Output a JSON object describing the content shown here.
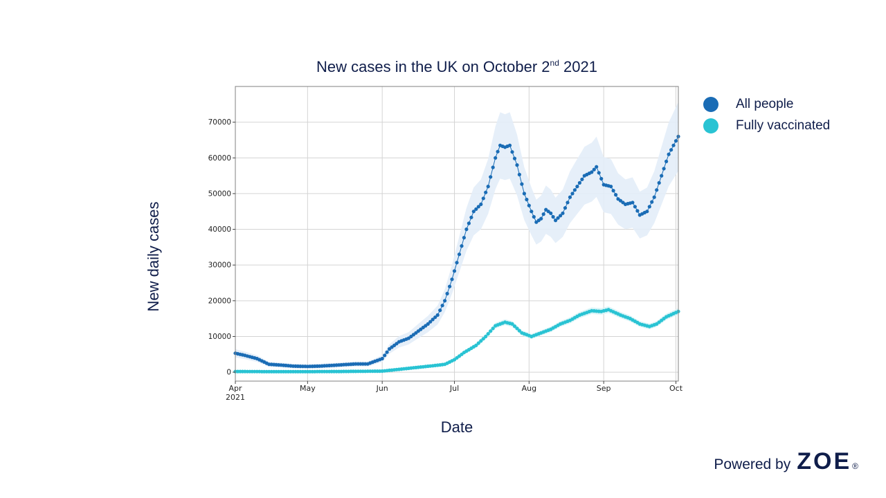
{
  "chart_data": {
    "type": "line",
    "title": "New cases in the UK on October 2",
    "title_superscript": "nd",
    "title_suffix": " 2021",
    "xlabel": "Date",
    "ylabel": "New daily cases",
    "x_ticks": [
      "Apr",
      "May",
      "Jun",
      "Jul",
      "Aug",
      "Sep",
      "Oct"
    ],
    "x_tick_year": "2021",
    "x_range": [
      "2021-04-01",
      "2021-10-02"
    ],
    "ylim": [
      -2500,
      80000
    ],
    "y_ticks": [
      0,
      10000,
      20000,
      30000,
      40000,
      50000,
      60000,
      70000
    ],
    "grid": true,
    "legend_position": "right",
    "series": [
      {
        "name": "All people",
        "color": "#1a6cb5",
        "band_color": "#e3edf8",
        "band_relative_width": 0.14,
        "points": [
          [
            "2021-04-01",
            5300
          ],
          [
            "2021-04-05",
            4700
          ],
          [
            "2021-04-10",
            3800
          ],
          [
            "2021-04-15",
            2200
          ],
          [
            "2021-04-20",
            2000
          ],
          [
            "2021-04-25",
            1700
          ],
          [
            "2021-05-01",
            1600
          ],
          [
            "2021-05-06",
            1700
          ],
          [
            "2021-05-11",
            1900
          ],
          [
            "2021-05-16",
            2100
          ],
          [
            "2021-05-21",
            2300
          ],
          [
            "2021-05-26",
            2300
          ],
          [
            "2021-06-01",
            3800
          ],
          [
            "2021-06-04",
            6500
          ],
          [
            "2021-06-08",
            8500
          ],
          [
            "2021-06-12",
            9500
          ],
          [
            "2021-06-16",
            11500
          ],
          [
            "2021-06-20",
            13500
          ],
          [
            "2021-06-24",
            16000
          ],
          [
            "2021-06-27",
            20000
          ],
          [
            "2021-06-30",
            26000
          ],
          [
            "2021-07-03",
            33000
          ],
          [
            "2021-07-06",
            40000
          ],
          [
            "2021-07-09",
            45000
          ],
          [
            "2021-07-12",
            47000
          ],
          [
            "2021-07-15",
            52000
          ],
          [
            "2021-07-18",
            60000
          ],
          [
            "2021-07-20",
            63500
          ],
          [
            "2021-07-22",
            63000
          ],
          [
            "2021-07-24",
            63500
          ],
          [
            "2021-07-27",
            58000
          ],
          [
            "2021-07-30",
            50000
          ],
          [
            "2021-08-02",
            45000
          ],
          [
            "2021-08-04",
            42000
          ],
          [
            "2021-08-06",
            43000
          ],
          [
            "2021-08-08",
            45500
          ],
          [
            "2021-08-10",
            44500
          ],
          [
            "2021-08-12",
            42500
          ],
          [
            "2021-08-15",
            44500
          ],
          [
            "2021-08-18",
            49000
          ],
          [
            "2021-08-21",
            52000
          ],
          [
            "2021-08-24",
            55000
          ],
          [
            "2021-08-27",
            56000
          ],
          [
            "2021-08-29",
            57500
          ],
          [
            "2021-09-01",
            52500
          ],
          [
            "2021-09-04",
            52000
          ],
          [
            "2021-09-07",
            48500
          ],
          [
            "2021-09-10",
            47000
          ],
          [
            "2021-09-13",
            47500
          ],
          [
            "2021-09-16",
            44000
          ],
          [
            "2021-09-19",
            45000
          ],
          [
            "2021-09-22",
            49000
          ],
          [
            "2021-09-25",
            55000
          ],
          [
            "2021-09-28",
            61000
          ],
          [
            "2021-10-02",
            66000
          ]
        ]
      },
      {
        "name": "Fully vaccinated",
        "color": "#29c3d3",
        "band_color": "#d6f3f6",
        "band_relative_width": 0.03,
        "points": [
          [
            "2021-04-01",
            200
          ],
          [
            "2021-04-15",
            150
          ],
          [
            "2021-05-01",
            150
          ],
          [
            "2021-05-15",
            200
          ],
          [
            "2021-06-01",
            300
          ],
          [
            "2021-06-08",
            800
          ],
          [
            "2021-06-15",
            1300
          ],
          [
            "2021-06-22",
            1800
          ],
          [
            "2021-06-27",
            2200
          ],
          [
            "2021-07-01",
            3500
          ],
          [
            "2021-07-05",
            5500
          ],
          [
            "2021-07-10",
            7500
          ],
          [
            "2021-07-14",
            10000
          ],
          [
            "2021-07-18",
            13000
          ],
          [
            "2021-07-22",
            14000
          ],
          [
            "2021-07-25",
            13500
          ],
          [
            "2021-07-29",
            11000
          ],
          [
            "2021-08-02",
            10000
          ],
          [
            "2021-08-06",
            11000
          ],
          [
            "2021-08-10",
            12000
          ],
          [
            "2021-08-14",
            13500
          ],
          [
            "2021-08-18",
            14500
          ],
          [
            "2021-08-22",
            16000
          ],
          [
            "2021-08-27",
            17200
          ],
          [
            "2021-08-31",
            17000
          ],
          [
            "2021-09-03",
            17500
          ],
          [
            "2021-09-08",
            16000
          ],
          [
            "2021-09-12",
            15000
          ],
          [
            "2021-09-16",
            13500
          ],
          [
            "2021-09-20",
            12800
          ],
          [
            "2021-09-23",
            13500
          ],
          [
            "2021-09-27",
            15500
          ],
          [
            "2021-10-02",
            17000
          ]
        ]
      }
    ]
  },
  "legend": {
    "items": [
      {
        "label": "All people",
        "color": "#1a6cb5"
      },
      {
        "label": "Fully vaccinated",
        "color": "#29c3d3"
      }
    ]
  },
  "footer": {
    "powered_by": "Powered by",
    "brand": "ZOE",
    "brand_mark": "®"
  }
}
